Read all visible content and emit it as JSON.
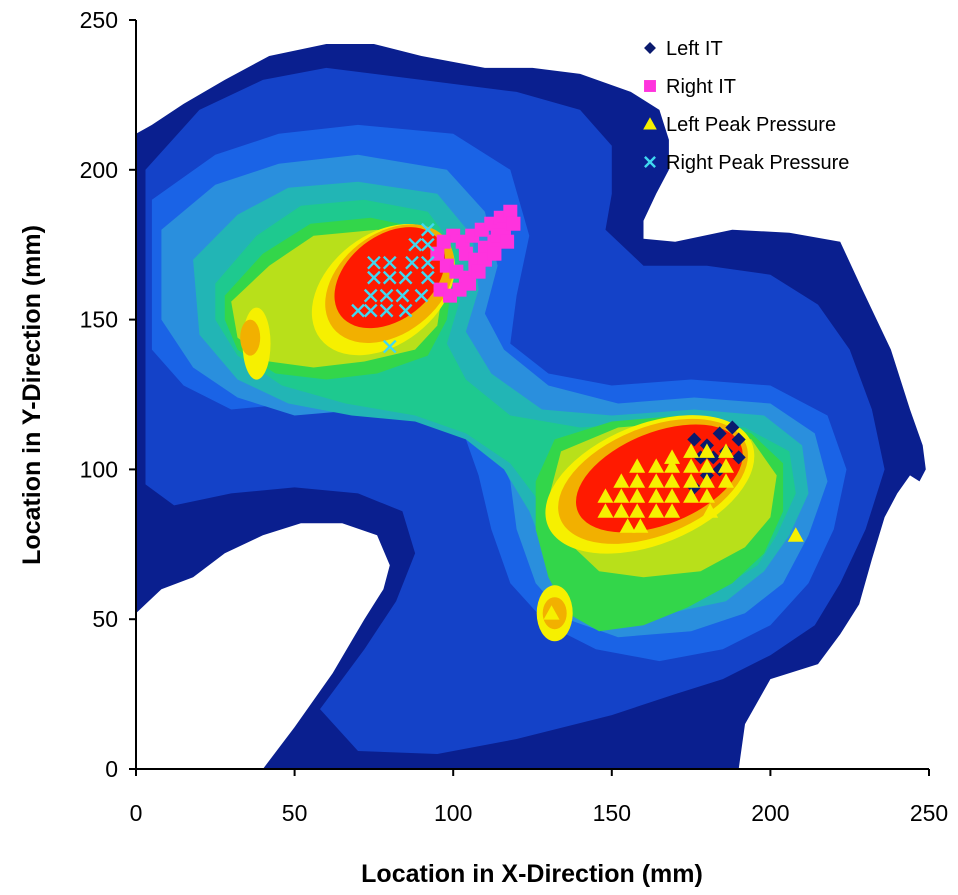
{
  "chart_data": {
    "type": "scatter",
    "title": "",
    "xlabel": "Location in X-Direction (mm)",
    "ylabel": "Location in Y-Direction (mm)",
    "xlim": [
      0,
      250
    ],
    "ylim": [
      0,
      250
    ],
    "xticks": [
      0,
      50,
      100,
      150,
      200,
      250
    ],
    "yticks": [
      0,
      50,
      100,
      150,
      200,
      250
    ],
    "grid": false,
    "legend_position": "top-right",
    "background": "pressure contour map",
    "colors": {
      "contour_levels": [
        "#0a1f8f",
        "#1442c8",
        "#1a63e6",
        "#2a8fdd",
        "#22b5b5",
        "#1ec98f",
        "#33d64a",
        "#b8e01a",
        "#f6f000",
        "#f2b000",
        "#ff1a00"
      ]
    },
    "series": [
      {
        "name": "Left IT",
        "marker": "diamond",
        "color": "#0a1a6e",
        "points": [
          [
            176,
            110
          ],
          [
            180,
            108
          ],
          [
            184,
            112
          ],
          [
            188,
            114
          ],
          [
            190,
            110
          ],
          [
            186,
            106
          ],
          [
            182,
            104
          ],
          [
            178,
            104
          ],
          [
            184,
            100
          ],
          [
            190,
            104
          ],
          [
            180,
            98
          ],
          [
            176,
            94
          ]
        ]
      },
      {
        "name": "Right IT",
        "marker": "square",
        "color": "#ff33dd",
        "points": [
          [
            100,
            178
          ],
          [
            103,
            176
          ],
          [
            106,
            178
          ],
          [
            109,
            180
          ],
          [
            112,
            182
          ],
          [
            115,
            184
          ],
          [
            118,
            186
          ],
          [
            104,
            172
          ],
          [
            107,
            170
          ],
          [
            110,
            174
          ],
          [
            113,
            176
          ],
          [
            116,
            180
          ],
          [
            119,
            182
          ],
          [
            98,
            168
          ],
          [
            101,
            166
          ],
          [
            104,
            164
          ],
          [
            107,
            167
          ],
          [
            110,
            170
          ],
          [
            113,
            172
          ],
          [
            96,
            160
          ],
          [
            99,
            158
          ],
          [
            102,
            160
          ],
          [
            105,
            162
          ],
          [
            108,
            166
          ],
          [
            95,
            172
          ],
          [
            97,
            176
          ],
          [
            114,
            178
          ],
          [
            117,
            176
          ]
        ]
      },
      {
        "name": "Left Peak Pressure",
        "marker": "triangle",
        "color": "#f6f000",
        "points": [
          [
            148,
            91
          ],
          [
            148,
            86
          ],
          [
            153,
            96
          ],
          [
            153,
            91
          ],
          [
            153,
            86
          ],
          [
            155,
            81
          ],
          [
            158,
            101
          ],
          [
            158,
            96
          ],
          [
            158,
            91
          ],
          [
            158,
            86
          ],
          [
            159,
            81
          ],
          [
            164,
            101
          ],
          [
            164,
            96
          ],
          [
            164,
            91
          ],
          [
            164,
            86
          ],
          [
            169,
            104
          ],
          [
            169,
            101
          ],
          [
            169,
            96
          ],
          [
            169,
            91
          ],
          [
            169,
            86
          ],
          [
            175,
            106
          ],
          [
            175,
            101
          ],
          [
            175,
            96
          ],
          [
            175,
            91
          ],
          [
            180,
            106
          ],
          [
            180,
            101
          ],
          [
            180,
            96
          ],
          [
            180,
            91
          ],
          [
            181,
            86
          ],
          [
            186,
            106
          ],
          [
            186,
            101
          ],
          [
            186,
            96
          ],
          [
            208,
            78
          ],
          [
            131,
            52
          ]
        ]
      },
      {
        "name": "Right Peak Pressure",
        "marker": "x",
        "color": "#40d8f0",
        "points": [
          [
            92,
            180
          ],
          [
            88,
            175
          ],
          [
            92,
            175
          ],
          [
            75,
            169
          ],
          [
            80,
            169
          ],
          [
            87,
            169
          ],
          [
            92,
            169
          ],
          [
            75,
            164
          ],
          [
            80,
            164
          ],
          [
            85,
            164
          ],
          [
            92,
            164
          ],
          [
            74,
            158
          ],
          [
            79,
            158
          ],
          [
            84,
            158
          ],
          [
            90,
            158
          ],
          [
            70,
            153
          ],
          [
            74,
            153
          ],
          [
            79,
            153
          ],
          [
            85,
            153
          ],
          [
            80,
            141
          ]
        ]
      }
    ]
  }
}
